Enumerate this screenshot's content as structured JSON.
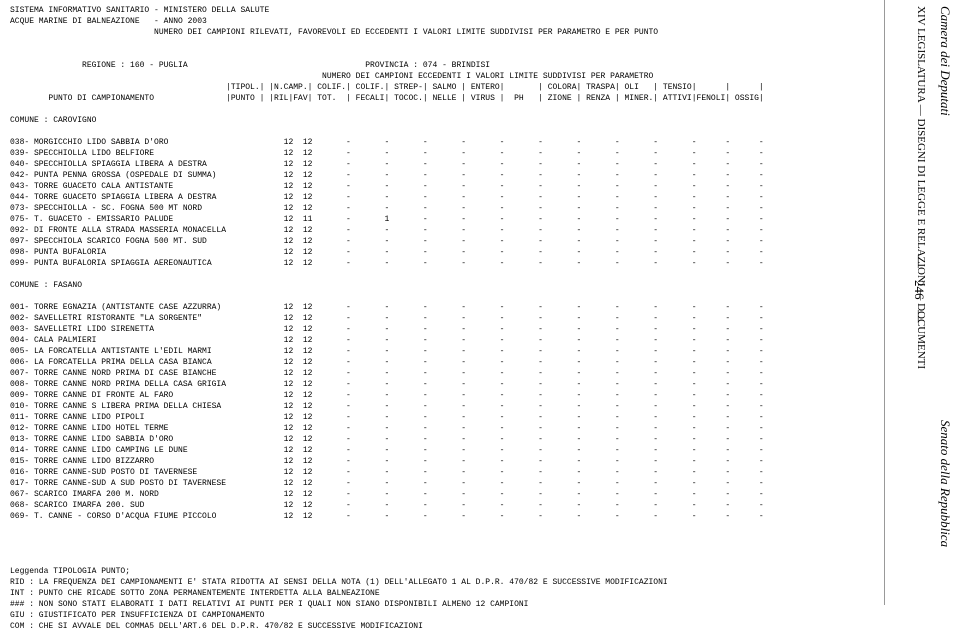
{
  "title1": "SISTEMA INFORMATIVO SANITARIO - MINISTERO DELLA SALUTE",
  "title2": "ACQUE MARINE DI BALNEAZIONE   - ANNO 2003",
  "title3": "                              NUMERO DEI CAMPIONI RILEVATI, FAVOREVOLI ED ECCEDENTI I VALORI LIMITE SUDDIVISI PER PARAMETRO E PER PUNTO",
  "regione": "               REGIONE : 160 - PUGLIA                                     PROVINCIA : 074 - BRINDISI",
  "subhead": "                                                                 NUMERO DEI CAMPIONI ECCEDENTI I VALORI LIMITE SUDDIVISI PER PARAMETRO",
  "hdr1": "                                             |TIPOL.| |N.CAMP.| COLIF.| COLIF.| STREP-| SALMO | ENTERO|       | COLORA| TRASPA| OLI   | TENSIO|      |      |",
  "hdr2": "        PUNTO DI CAMPIONAMENTO               |PUNTO | |RIL|FAV| TOT.  | FECALI| TOCOC.| NELLE | VIRUS |  PH   | ZIONE | RENZA | MINER.| ATTIVI|FENOLI| OSSIG|",
  "comune1": "COMUNE : CAROVIGNO",
  "rows1": [
    "038- MORGICCHIO LIDO SABBIA D'ORO                        12  12       -       -       -       -       -       -       -       -       -       -      -      -",
    "039- SPECCHIOLLA LIDO BELFIORE                           12  12       -       -       -       -       -       -       -       -       -       -      -      -",
    "040- SPECCHIOLLA SPIAGGIA LIBERA A DESTRA                12  12       -       -       -       -       -       -       -       -       -       -      -      -",
    "042- PUNTA PENNA GROSSA (OSPEDALE DI SUMMA)              12  12       -       -       -       -       -       -       -       -       -       -      -      -",
    "043- TORRE GUACETO CALA ANTISTANTE                       12  12       -       -       -       -       -       -       -       -       -       -      -      -",
    "044- TORRE GUACETO SPIAGGIA LIBERA A DESTRA              12  12       -       -       -       -       -       -       -       -       -       -      -      -",
    "073- SPECCHIOLLA - SC. FOGNA 500 MT NORD                 12  12       -       -       -       -       -       -       -       -       -       -      -      -",
    "075- T. GUACETO - EMISSARIO PALUDE                       12  11       -       1       -       -       -       -       -       -       -       -      -      -",
    "092- DI FRONTE ALLA STRADA MASSERIA MONACELLA            12  12       -       -       -       -       -       -       -       -       -       -      -      -",
    "097- SPECCHIOLA SCARICO FOGNA 500 MT. SUD                12  12       -       -       -       -       -       -       -       -       -       -      -      -",
    "098- PUNTA BUFALORIA                                     12  12       -       -       -       -       -       -       -       -       -       -      -      -",
    "099- PUNTA BUFALORIA SPIAGGIA AEREONAUTICA               12  12       -       -       -       -       -       -       -       -       -       -      -      -"
  ],
  "comune2": "COMUNE : FASANO",
  "rows2": [
    "001- TORRE EGNAZIA (ANTISTANTE CASE AZZURRA)             12  12       -       -       -       -       -       -       -       -       -       -      -      -",
    "002- SAVELLETRI RISTORANTE \"LA SORGENTE\"                 12  12       -       -       -       -       -       -       -       -       -       -      -      -",
    "003- SAVELLETRI LIDO SIRENETTA                           12  12       -       -       -       -       -       -       -       -       -       -      -      -",
    "004- CALA PALMIERI                                       12  12       -       -       -       -       -       -       -       -       -       -      -      -",
    "005- LA FORCATELLA ANTISTANTE L'EDIL MARMI               12  12       -       -       -       -       -       -       -       -       -       -      -      -",
    "006- LA FORCATELLA PRIMA DELLA CASA BIANCA               12  12       -       -       -       -       -       -       -       -       -       -      -      -",
    "007- TORRE CANNE NORD PRIMA DI CASE BIANCHE              12  12       -       -       -       -       -       -       -       -       -       -      -      -",
    "008- TORRE CANNE NORD PRIMA DELLA CASA GRIGIA            12  12       -       -       -       -       -       -       -       -       -       -      -      -",
    "009- TORRE CANNE DI FRONTE AL FARO                       12  12       -       -       -       -       -       -       -       -       -       -      -      -",
    "010- TORRE CANNE S LIBERA PRIMA DELLA CHIESA             12  12       -       -       -       -       -       -       -       -       -       -      -      -",
    "011- TORRE CANNE LIDO PIPOLI                             12  12       -       -       -       -       -       -       -       -       -       -      -      -",
    "012- TORRE CANNE LIDO HOTEL TERME                        12  12       -       -       -       -       -       -       -       -       -       -      -      -",
    "013- TORRE CANNE LIDO SABBIA D'ORO                       12  12       -       -       -       -       -       -       -       -       -       -      -      -",
    "014- TORRE CANNE LIDO CAMPING LE DUNE                    12  12       -       -       -       -       -       -       -       -       -       -      -      -",
    "015- TORRE CANNE LIDO BIZZARRO                           12  12       -       -       -       -       -       -       -       -       -       -      -      -",
    "016- TORRE CANNE-SUD POSTO DI TAVERNESE                  12  12       -       -       -       -       -       -       -       -       -       -      -      -",
    "017- TORRE CANNE-SUD A SUD POSTO DI TAVERNESE            12  12       -       -       -       -       -       -       -       -       -       -      -      -",
    "067- SCARICO IMARFA 200 M. NORD                          12  12       -       -       -       -       -       -       -       -       -       -      -      -",
    "068- SCARICO IMARFA 200. SUD                             12  12       -       -       -       -       -       -       -       -       -       -      -      -",
    "069- T. CANNE - CORSO D'ACQUA FIUME PICCOLO              12  12       -       -       -       -       -       -       -       -       -       -      -      -"
  ],
  "legend_title": "Leggenda TIPOLOGIA PUNTO;",
  "legend": [
    "RID : LA FREQUENZA DEI CAMPIONAMENTI E' STATA RIDOTTA AI SENSI DELLA NOTA (1) DELL'ALLEGATO 1 AL D.P.R. 470/82 E SUCCESSIVE MODIFICAZIONI",
    "INT : PUNTO CHE RICADE SOTTO ZONA PERMANENTEMENTE INTERDETTA ALLA BALNEAZIONE",
    "### : NON SONO STATI ELABORATI I DATI RELATIVI AI PUNTI PER I QUALI NON SIANO DISPONIBILI ALMENO 12 CAMPIONI",
    "GIU : GIUSTIFICATO PER INSUFFICIENZA DI CAMPIONAMENTO",
    "COM : CHE SI AVVALE DEL COMMA5 DELL'ART.6 DEL D.P.R. 470/82 E SUCCESSIVE MODIFICAZIONI"
  ],
  "margin": {
    "camera": "Camera dei Deputati",
    "xiv": "XIV LEGISLATURA — DISEGNI DI LEGGE E RELAZIONI — DOCUMENTI",
    "page": "246",
    "senato": "Senato della Repubblica"
  }
}
